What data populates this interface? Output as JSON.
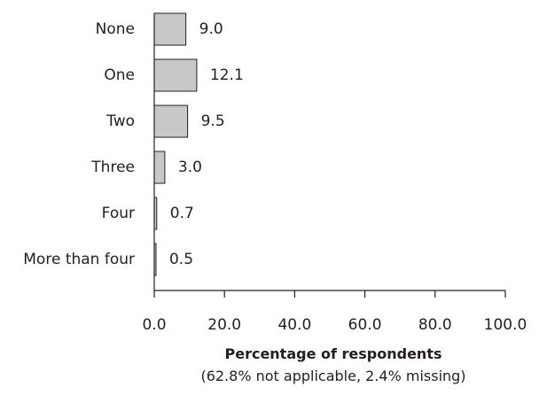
{
  "chart_data": {
    "type": "bar",
    "orientation": "horizontal",
    "categories": [
      "None",
      "One",
      "Two",
      "Three",
      "Four",
      "More than four"
    ],
    "values": [
      9.0,
      12.1,
      9.5,
      3.0,
      0.7,
      0.5
    ],
    "value_labels": [
      "9.0",
      "12.1",
      "9.5",
      "3.0",
      "0.7",
      "0.5"
    ],
    "xlabel": "Percentage of respondents",
    "xlabel_note": "(62.8% not applicable, 2.4% missing)",
    "ylabel": "",
    "xlim": [
      0,
      100
    ],
    "x_ticks": [
      "0.0",
      "20.0",
      "40.0",
      "60.0",
      "80.0",
      "100.0"
    ],
    "grid": false,
    "legend": "none",
    "bar_fill": "#c8c8c8",
    "bar_stroke": "#231f20"
  }
}
